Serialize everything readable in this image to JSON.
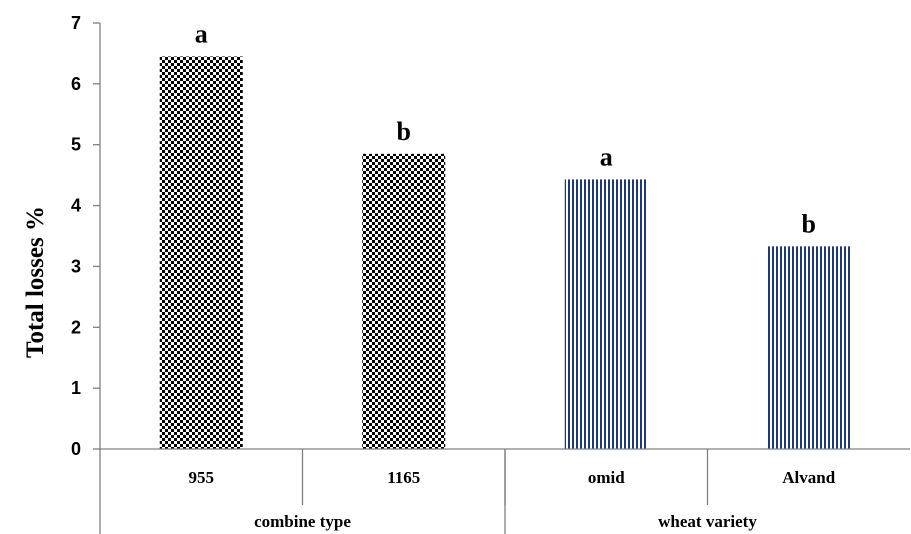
{
  "chart_data": {
    "type": "bar",
    "title": "",
    "xlabel": "",
    "ylabel": "Total losses %",
    "ylim": [
      0,
      7
    ],
    "yticks": [
      0,
      1,
      2,
      3,
      4,
      5,
      6,
      7
    ],
    "grid": false,
    "legend": "none",
    "groups": [
      {
        "label": "combine type",
        "pattern": "checkerboard",
        "color": "#000000",
        "bars": [
          {
            "category": "955",
            "value": 6.45,
            "significance": "a"
          },
          {
            "category": "1165",
            "value": 4.85,
            "significance": "b"
          }
        ]
      },
      {
        "label": "wheat variety",
        "pattern": "vertical-stripes",
        "color": "#1f3a7a",
        "bars": [
          {
            "category": "omid",
            "value": 4.43,
            "significance": "a"
          },
          {
            "category": "Alvand",
            "value": 3.33,
            "significance": "b"
          }
        ]
      }
    ]
  }
}
